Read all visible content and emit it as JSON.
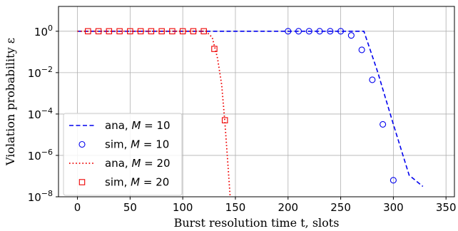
{
  "chart_data": {
    "type": "line",
    "xlabel": "Burst resolution time t, slots",
    "ylabel": "Violation probability ε",
    "xlim": [
      -18,
      358
    ],
    "ylim_log10": [
      -8,
      1.2
    ],
    "yscale": "log",
    "grid": true,
    "legend_position": "lower-left",
    "x_ticks": [
      0,
      50,
      100,
      150,
      200,
      250,
      300,
      350
    ],
    "y_ticks": [
      {
        "exp": 0,
        "base": "10",
        "sup": "0"
      },
      {
        "exp": -2,
        "base": "10",
        "sup": "−2"
      },
      {
        "exp": -4,
        "base": "10",
        "sup": "−4"
      },
      {
        "exp": -6,
        "base": "10",
        "sup": "−6"
      },
      {
        "exp": -8,
        "base": "10",
        "sup": "−8"
      }
    ],
    "series": [
      {
        "name": "ana, M = 10",
        "legend_prefix": "ana, ",
        "legend_var": "M",
        "legend_value": " = 10",
        "style": "dashed",
        "color": "#0000ee",
        "points": [
          [
            0,
            1
          ],
          [
            272,
            1
          ],
          [
            285,
            0.0112
          ],
          [
            300,
            3.16e-05
          ],
          [
            315,
            1.1e-07
          ],
          [
            328,
            3.16e-08
          ]
        ]
      },
      {
        "name": "sim, M = 10",
        "legend_prefix": "sim, ",
        "legend_var": "M",
        "legend_value": " = 10",
        "style": "circle",
        "color": "#0000ee",
        "points": [
          [
            200,
            1
          ],
          [
            210,
            1
          ],
          [
            220,
            1
          ],
          [
            230,
            1
          ],
          [
            240,
            1
          ],
          [
            250,
            1
          ],
          [
            260,
            0.63
          ],
          [
            270,
            0.126
          ],
          [
            280,
            0.0045
          ],
          [
            290,
            3.16e-05
          ],
          [
            300,
            6.3e-08
          ]
        ]
      },
      {
        "name": "ana, M = 20",
        "legend_prefix": "ana, ",
        "legend_var": "M",
        "legend_value": " = 20",
        "style": "dotted",
        "color": "#ee0000",
        "points": [
          [
            0,
            1
          ],
          [
            122,
            1
          ],
          [
            128,
            0.5
          ],
          [
            133,
            0.05
          ],
          [
            137,
            0.0025
          ],
          [
            140,
            4e-05
          ],
          [
            143,
            3e-07
          ],
          [
            145,
            1e-08
          ]
        ]
      },
      {
        "name": "sim, M = 20",
        "legend_prefix": "sim, ",
        "legend_var": "M",
        "legend_value": " = 20",
        "style": "square",
        "color": "#ee0000",
        "points": [
          [
            10,
            1
          ],
          [
            20,
            1
          ],
          [
            30,
            1
          ],
          [
            40,
            1
          ],
          [
            50,
            1
          ],
          [
            60,
            1
          ],
          [
            70,
            1
          ],
          [
            80,
            1
          ],
          [
            90,
            1
          ],
          [
            100,
            1
          ],
          [
            110,
            1
          ],
          [
            120,
            1
          ],
          [
            130,
            0.14
          ],
          [
            140,
            5e-05
          ]
        ]
      }
    ]
  }
}
